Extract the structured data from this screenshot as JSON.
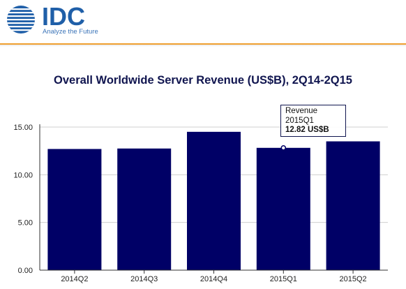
{
  "header": {
    "logo_text": "IDC",
    "tagline": "Analyze the Future",
    "brand_color": "#1f5fa8",
    "rule_color": "#f0a030"
  },
  "chart_data": {
    "type": "bar",
    "title": "Overall Worldwide Server Revenue (US$B), 2Q14-2Q15",
    "xlabel": "",
    "ylabel": "",
    "categories": [
      "2014Q2",
      "2014Q3",
      "2014Q4",
      "2015Q1",
      "2015Q2"
    ],
    "series": [
      {
        "name": "Revenue",
        "values": [
          12.7,
          12.75,
          14.5,
          12.82,
          13.5
        ],
        "color": "#000066"
      }
    ],
    "ylim": [
      0,
      15
    ],
    "yticks": [
      "0.00",
      "5.00",
      "10.00",
      "15.00"
    ],
    "grid": true,
    "tooltip": {
      "series": "Revenue",
      "category": "2015Q1",
      "value_text": "12.82 US$B"
    }
  }
}
